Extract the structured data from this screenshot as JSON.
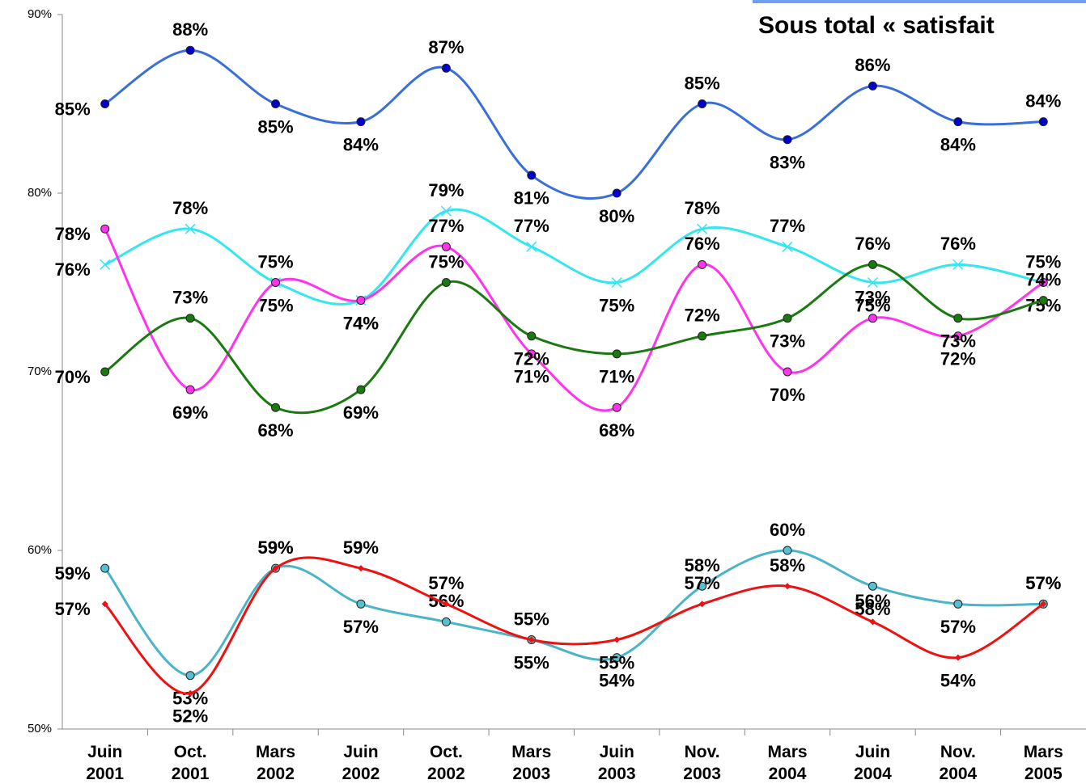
{
  "chart_data": {
    "type": "line",
    "title": "Sous total « satisfait",
    "categories": [
      "Juin 2001",
      "Oct. 2001",
      "Mars 2002",
      "Juin 2002",
      "Oct. 2002",
      "Mars 2003",
      "Juin 2003",
      "Nov. 2003",
      "Mars 2004",
      "Juin 2004",
      "Nov. 2004",
      "Mars 2005"
    ],
    "ylim": [
      50,
      90
    ],
    "yticks": [
      {
        "value": 50,
        "label": "50%"
      },
      {
        "value": 60,
        "label": "60%"
      },
      {
        "value": 70,
        "label": "70%"
      },
      {
        "value": 80,
        "label": "80%"
      },
      {
        "value": 90,
        "label": "90%"
      }
    ],
    "grid": false,
    "series": [
      {
        "color": "#3a6fd8",
        "marker": "circle",
        "marker_color": "#0000cc",
        "values": [
          85,
          88,
          85,
          84,
          87,
          81,
          80,
          85,
          83,
          86,
          84,
          84
        ],
        "value_labels": [
          "85%",
          "88%",
          "85%",
          "84%",
          "87%",
          "81%",
          "80%",
          "85%",
          "83%",
          "86%",
          "84%",
          "84%"
        ]
      },
      {
        "color": "#33e6f0",
        "marker": "x",
        "marker_color": "#33e6f0",
        "values": [
          76,
          78,
          75,
          74,
          79,
          77,
          75,
          78,
          77,
          75,
          76,
          75
        ],
        "value_labels": [
          "76%",
          "78%",
          "75%",
          "74%",
          "79%",
          "77%",
          "75%",
          "78%",
          "77%",
          "75%",
          "76%",
          "75%"
        ]
      },
      {
        "color": "#ff33ee",
        "marker": "circle",
        "marker_color": "#ff33ee",
        "values": [
          78,
          69,
          75,
          74,
          77,
          71,
          68,
          76,
          70,
          73,
          72,
          75
        ],
        "value_labels": [
          "78%",
          "69%",
          "75%",
          "74%",
          "77%",
          "71%",
          "68%",
          "76%",
          "70%",
          "73%",
          "72%",
          "75%"
        ]
      },
      {
        "color": "#1a7a10",
        "marker": "circle",
        "marker_color": "#1a7a10",
        "values": [
          70,
          73,
          68,
          69,
          75,
          72,
          71,
          72,
          73,
          76,
          73,
          74
        ],
        "value_labels": [
          "70%",
          "73%",
          "68%",
          "69%",
          "75%",
          "72%",
          "71%",
          "72%",
          "73%",
          "76%",
          "73%",
          "74%"
        ]
      },
      {
        "color": "#4ab4c8",
        "marker": "circle",
        "marker_color": "#55c0d0",
        "values": [
          59,
          53,
          59,
          57,
          56,
          55,
          54,
          58,
          60,
          58,
          57,
          57
        ],
        "value_labels": [
          "59%",
          "53%",
          "59%",
          "57%",
          "56%",
          "55%",
          "54%",
          "58%",
          "60%",
          "58%",
          "57%",
          "57%"
        ]
      },
      {
        "color": "#ee1111",
        "marker": "diamond",
        "marker_color": "#ee1111",
        "values": [
          57,
          52,
          59,
          59,
          57,
          55,
          55,
          57,
          58,
          56,
          54,
          57
        ],
        "value_labels": [
          "57%",
          "52%",
          "59%",
          "59%",
          "57%",
          "55%",
          "55%",
          "57%",
          "58%",
          "56%",
          "54%",
          "57%"
        ]
      }
    ]
  }
}
